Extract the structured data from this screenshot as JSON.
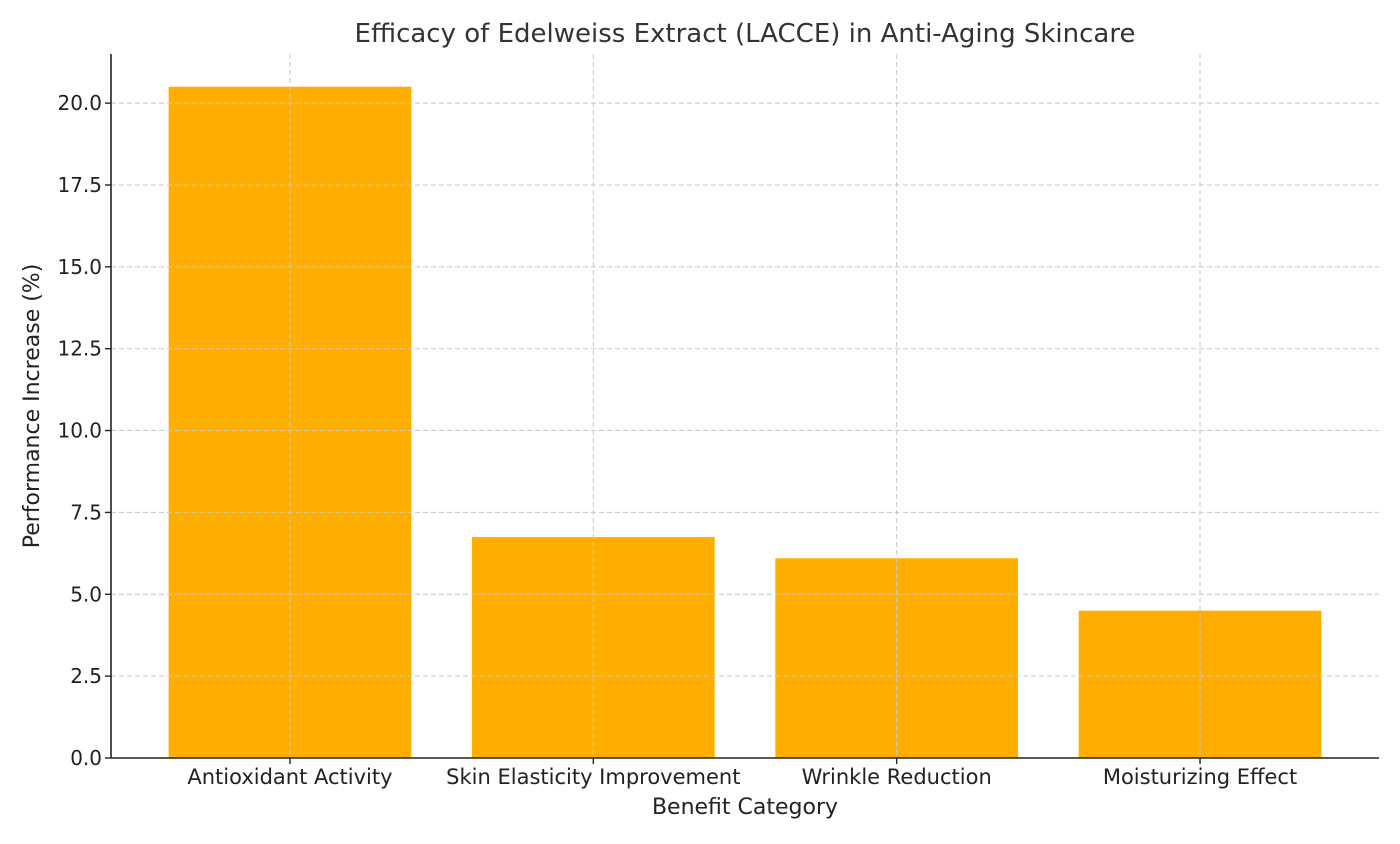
{
  "chart_data": {
    "type": "bar",
    "title": "Efficacy of Edelweiss Extract (LACCE) in Anti-Aging Skincare",
    "xlabel": "Benefit Category",
    "ylabel": "Performance Increase (%)",
    "categories": [
      "Antioxidant Activity",
      "Skin Elasticity Improvement",
      "Wrinkle Reduction",
      "Moisturizing Effect"
    ],
    "values": [
      20.5,
      6.75,
      6.1,
      4.5
    ],
    "ylim": [
      0,
      21.5
    ],
    "yticks": [
      "0.0",
      "2.5",
      "5.0",
      "7.5",
      "10.0",
      "12.5",
      "15.0",
      "17.5",
      "20.0"
    ],
    "grid": true,
    "bar_color": "#FFAE00"
  }
}
